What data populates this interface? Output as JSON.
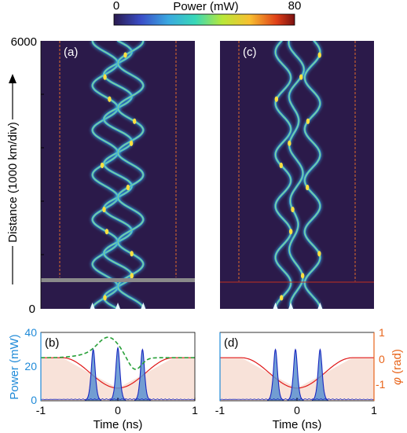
{
  "colorbar": {
    "label": "Power (mW)",
    "min_label": "0",
    "max_label": "80",
    "range": [
      0,
      80
    ],
    "colors": [
      "#2a1a4e",
      "#3a4ec8",
      "#3aa8e0",
      "#38d8b8",
      "#b8e838",
      "#f8c030",
      "#e04018",
      "#7a1010"
    ]
  },
  "colors": {
    "background": "#2b1a4a",
    "trace": "#38b0e8",
    "trace_core": "#c8f040",
    "peak": "#ffe040",
    "dashed_box": "#e06a2a",
    "gray_bar": "#8a8a8a",
    "phase_red": "#e01818",
    "green_dash": "#28a038",
    "pulse_fill": "#5a90d0",
    "pulse_line": "#1a28c0",
    "shade": "#f6d8cc",
    "power_axis": "#1f8ad8",
    "phase_axis": "#e8641a"
  },
  "panels": {
    "a": {
      "label": "(a)"
    },
    "b": {
      "label": "(b)"
    },
    "c": {
      "label": "(c)"
    },
    "d": {
      "label": "(d)"
    }
  },
  "chart_data": [
    {
      "panel": "(a)",
      "type": "heatmap",
      "ylabel": "Distance (1000 km/div)",
      "ylim": [
        0,
        6000
      ],
      "yticks": [
        "0",
        "6000"
      ],
      "xlim": [
        -1,
        1
      ],
      "x_unit": "ns",
      "description_values": {
        "pulse_launch_positions_ns": [
          -0.33,
          0,
          0.33
        ],
        "crossing_period_km": 1000,
        "window_edges_ns": [
          -0.72,
          0.78
        ],
        "gray_line_distance_km": 650
      }
    },
    {
      "panel": "(c)",
      "type": "heatmap",
      "ylim": [
        0,
        6000
      ],
      "xlim": [
        -1,
        1
      ],
      "x_unit": "ns",
      "description_values": {
        "pulse_launch_positions_ns": [
          -0.28,
          -0.08,
          0.3
        ],
        "window_edges_ns": [
          -0.72,
          0.78
        ],
        "red_line_distance_km": 600
      }
    },
    {
      "panel": "(b)",
      "type": "line",
      "xlabel": "Time (ns)",
      "ylabel": "Power (mW)",
      "y2label": "φ (rad)",
      "xlim": [
        -1,
        1
      ],
      "ylim": [
        0,
        40
      ],
      "y2lim": [
        -1.7,
        1
      ],
      "xticks": [
        "-1",
        "0",
        "1"
      ],
      "yticks": [
        "0",
        "20",
        "40"
      ],
      "y2ticks": [
        "-1",
        "0",
        "1"
      ],
      "series": [
        {
          "kind": "pulses",
          "centers_ns": [
            -0.32,
            0.0,
            0.32
          ],
          "peaks_mW": [
            30,
            31,
            30
          ],
          "width_ns": 0.035
        },
        {
          "kind": "phase",
          "points": [
            [
              -1,
              0
            ],
            [
              -0.72,
              0
            ],
            [
              -0.4,
              -0.55
            ],
            [
              0,
              -1.2
            ],
            [
              0.4,
              -0.55
            ],
            [
              0.72,
              0
            ],
            [
              1,
              0
            ]
          ]
        },
        {
          "kind": "green_phase",
          "points": [
            [
              -1,
              0
            ],
            [
              -0.5,
              0.05
            ],
            [
              -0.3,
              0.5
            ],
            [
              -0.1,
              0.75
            ],
            [
              0.05,
              0.2
            ],
            [
              0.2,
              -0.2
            ],
            [
              0.35,
              -0.05
            ],
            [
              0.55,
              0
            ],
            [
              1,
              0
            ]
          ]
        }
      ]
    },
    {
      "panel": "(d)",
      "type": "line",
      "xlabel": "Time (ns)",
      "xlim": [
        -1,
        1
      ],
      "ylim": [
        0,
        40
      ],
      "y2lim": [
        -1.7,
        1
      ],
      "xticks": [
        "-1",
        "0",
        "1"
      ],
      "y2ticks": [
        "-1",
        "0",
        "1"
      ],
      "series": [
        {
          "kind": "pulses",
          "centers_ns": [
            -0.28,
            -0.02,
            0.3
          ],
          "peaks_mW": [
            30,
            30,
            30
          ],
          "width_ns": 0.035
        },
        {
          "kind": "phase",
          "points": [
            [
              -1,
              0
            ],
            [
              -0.72,
              0
            ],
            [
              -0.4,
              -0.55
            ],
            [
              0,
              -1.2
            ],
            [
              0.4,
              -0.55
            ],
            [
              0.72,
              0
            ],
            [
              1,
              0
            ]
          ]
        }
      ]
    }
  ],
  "labels": {
    "yaxis_dist": "Distance (1000 km/div)",
    "y0": "0",
    "y6000": "6000",
    "power_axis": "Power (mW)",
    "phase_axis_sym": "φ",
    "phase_axis_unit": " (rad)",
    "xlabel": "Time (ns)",
    "tick_m1": "-1",
    "tick_0": "0",
    "tick_1": "1",
    "p_0": "0",
    "p_20": "20",
    "p_40": "40",
    "ph_1": "1",
    "ph_0": "0",
    "ph_m1": "-1"
  }
}
